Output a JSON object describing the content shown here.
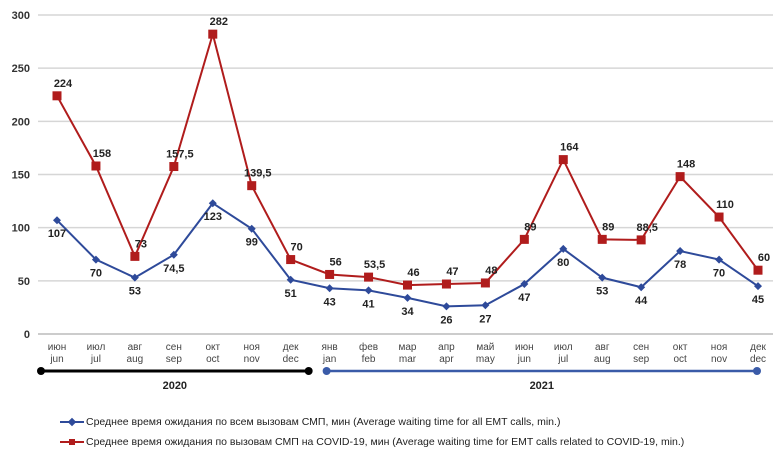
{
  "chart_data": {
    "type": "line",
    "title": "",
    "xlabel": "",
    "ylabel": "",
    "ylim": [
      0,
      300
    ],
    "yticks": [
      "0",
      "50",
      "100",
      "150",
      "200",
      "250",
      "300"
    ],
    "grid": true,
    "legend_position": "bottom",
    "categories": [
      {
        "ru": "июн",
        "en": "jun"
      },
      {
        "ru": "июл",
        "en": "jul"
      },
      {
        "ru": "авг",
        "en": "aug"
      },
      {
        "ru": "сен",
        "en": "sep"
      },
      {
        "ru": "окт",
        "en": "oct"
      },
      {
        "ru": "ноя",
        "en": "nov"
      },
      {
        "ru": "дек",
        "en": "dec"
      },
      {
        "ru": "янв",
        "en": "jan"
      },
      {
        "ru": "фев",
        "en": "feb"
      },
      {
        "ru": "мар",
        "en": "mar"
      },
      {
        "ru": "апр",
        "en": "apr"
      },
      {
        "ru": "май",
        "en": "may"
      },
      {
        "ru": "июн",
        "en": "jun"
      },
      {
        "ru": "июл",
        "en": "jul"
      },
      {
        "ru": "авг",
        "en": "aug"
      },
      {
        "ru": "сен",
        "en": "sep"
      },
      {
        "ru": "окт",
        "en": "oct"
      },
      {
        "ru": "ноя",
        "en": "nov"
      },
      {
        "ru": "дек",
        "en": "dec"
      }
    ],
    "years": [
      {
        "label": "2020",
        "from": 0,
        "to": 6,
        "color": "#000000"
      },
      {
        "label": "2021",
        "from": 7,
        "to": 18,
        "color": "#3a5ba8"
      }
    ],
    "series": [
      {
        "name": "Среднее время ожидания по всем вызовам СМП, мин (Average waiting time for all EMT calls, min.)",
        "color": "#2e4a9a",
        "marker": "diamond",
        "label_position": "below",
        "values": [
          107,
          70,
          53,
          74.5,
          123,
          99,
          51,
          43,
          41,
          34,
          26,
          27,
          47,
          80,
          53,
          44,
          78,
          70,
          45
        ],
        "labels": [
          "107",
          "70",
          "53",
          "74,5",
          "123",
          "99",
          "51",
          "43",
          "41",
          "34",
          "26",
          "27",
          "47",
          "80",
          "53",
          "44",
          "78",
          "70",
          "45"
        ]
      },
      {
        "name": "Среднее время ожидания по вызовам СМП на COVID-19, мин (Average waiting time for EMT calls related to COVID-19, min.)",
        "color": "#b01c1c",
        "marker": "square",
        "label_position": "above",
        "values": [
          224,
          158,
          73,
          157.5,
          282,
          139.5,
          70,
          56,
          53.5,
          46,
          47,
          48,
          89,
          164,
          89,
          88.5,
          148,
          110,
          60
        ],
        "labels": [
          "224",
          "158",
          "73",
          "157,5",
          "282",
          "139,5",
          "70",
          "56",
          "53,5",
          "46",
          "47",
          "48",
          "89",
          "164",
          "89",
          "88,5",
          "148",
          "110",
          "60"
        ]
      }
    ]
  }
}
